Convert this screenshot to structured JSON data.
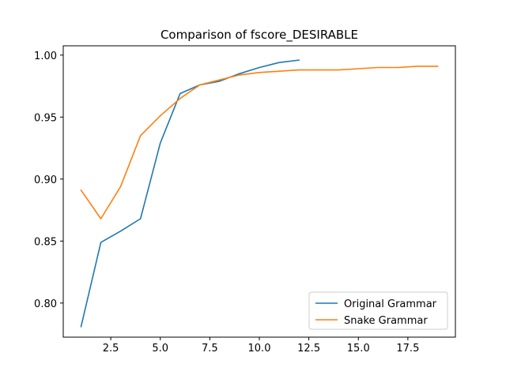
{
  "chart_data": {
    "type": "line",
    "title": "Comparison of fscore_DESIRABLE",
    "xlabel": "",
    "ylabel": "",
    "xlim": [
      0.1,
      19.9
    ],
    "ylim": [
      0.7725,
      1.0075
    ],
    "x_ticks": [
      2.5,
      5.0,
      7.5,
      10.0,
      12.5,
      15.0,
      17.5
    ],
    "x_tick_labels": [
      "2.5",
      "5.0",
      "7.5",
      "10.0",
      "12.5",
      "15.0",
      "17.5"
    ],
    "y_ticks": [
      0.8,
      0.85,
      0.9,
      0.95,
      1.0
    ],
    "y_tick_labels": [
      "0.80",
      "0.85",
      "0.90",
      "0.95",
      "1.00"
    ],
    "grid": false,
    "legend_position": "lower-right",
    "series": [
      {
        "name": "Original Grammar",
        "color": "#1f77b4",
        "x": [
          1,
          2,
          3,
          4,
          5,
          6,
          7,
          8,
          9,
          10,
          11,
          12
        ],
        "y": [
          0.781,
          0.849,
          0.858,
          0.868,
          0.929,
          0.969,
          0.976,
          0.979,
          0.985,
          0.99,
          0.994,
          0.996
        ]
      },
      {
        "name": "Snake Grammar",
        "color": "#ff7f0e",
        "x": [
          1,
          2,
          3,
          4,
          5,
          6,
          7,
          8,
          9,
          10,
          11,
          12,
          13,
          14,
          15,
          16,
          17,
          18,
          19
        ],
        "y": [
          0.891,
          0.868,
          0.894,
          0.935,
          0.951,
          0.965,
          0.976,
          0.98,
          0.984,
          0.986,
          0.987,
          0.988,
          0.988,
          0.988,
          0.989,
          0.99,
          0.99,
          0.991,
          0.991
        ]
      }
    ]
  }
}
